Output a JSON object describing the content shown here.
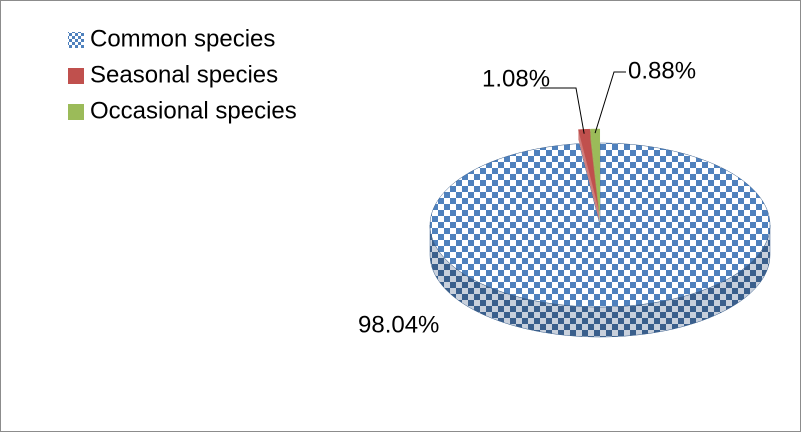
{
  "chart_data": {
    "type": "pie",
    "categories": [
      "Common species",
      "Seasonal species",
      "Occasional species"
    ],
    "values": [
      98.04,
      1.08,
      0.88
    ],
    "value_labels": [
      "98.04%",
      "1.08%",
      "0.88%"
    ],
    "colors": [
      "#4f81bd",
      "#c0504d",
      "#9bbb59"
    ]
  }
}
